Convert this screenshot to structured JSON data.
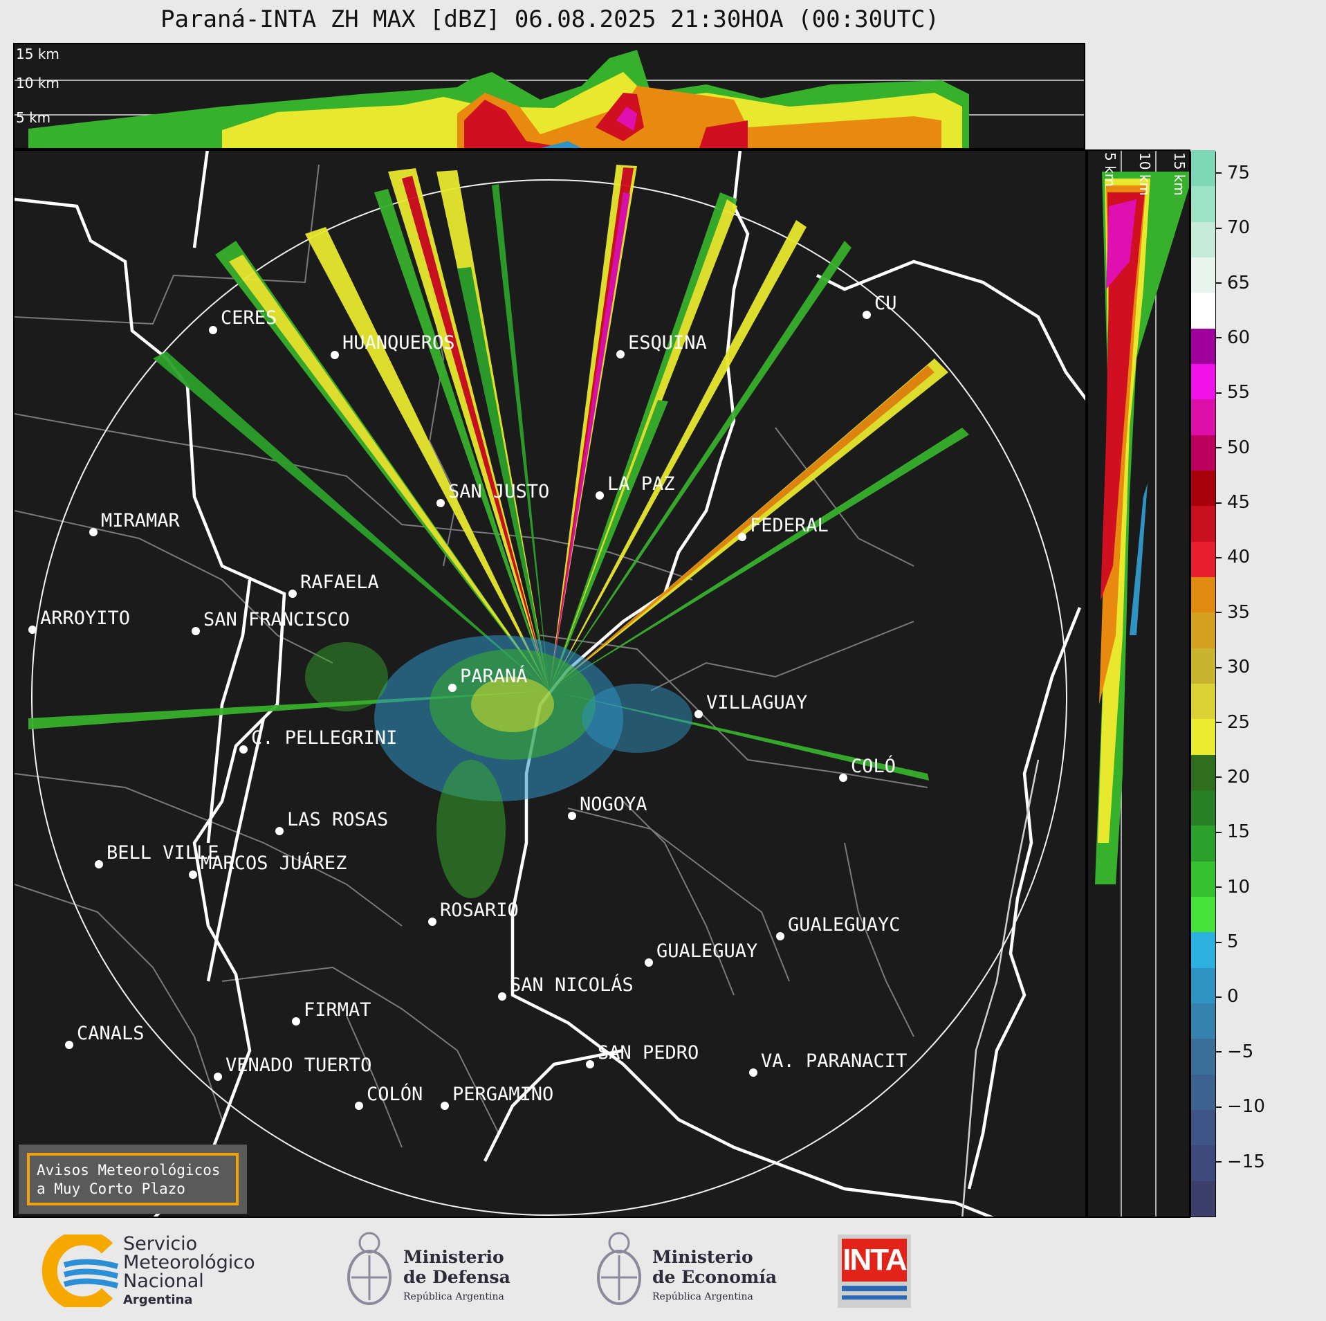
{
  "title": "Paraná-INTA ZH MAX [dBZ] 06.08.2025 21:30HOA (00:30UTC)",
  "top_panel": {
    "altitude_labels": [
      "15 km",
      "10 km",
      "5 km"
    ]
  },
  "side_panel": {
    "altitude_labels": [
      "5 km",
      "10 km",
      "15 km"
    ]
  },
  "colorbar": {
    "unit": "dBZ",
    "ticks": [
      "75",
      "70",
      "65",
      "60",
      "55",
      "50",
      "45",
      "40",
      "35",
      "30",
      "25",
      "20",
      "15",
      "10",
      "5",
      "0",
      "−5",
      "−10",
      "−15"
    ],
    "range": [
      -20,
      77
    ],
    "colors": [
      "#3d3f6b",
      "#3f4a7c",
      "#3f5587",
      "#3d6290",
      "#3a6f9a",
      "#3682ae",
      "#2f94c4",
      "#2bb0e0",
      "#46e23a",
      "#36c230",
      "#2ba02a",
      "#288024",
      "#2f6e1f",
      "#ecec2e",
      "#dcd236",
      "#c8b42e",
      "#d4a020",
      "#e08a10",
      "#e81e2e",
      "#c8101e",
      "#a8000a",
      "#bc0060",
      "#dc10a8",
      "#f010e8",
      "#a0009c",
      "#ffffff",
      "#e8f4ee",
      "#c4ecd8",
      "#9ce2c4",
      "#7ed8b8"
    ]
  },
  "cities": [
    {
      "name": "CERES"
    },
    {
      "name": "HUANQUEROS"
    },
    {
      "name": "ESQUINA"
    },
    {
      "name": "CU"
    },
    {
      "name": "SAN JUSTO"
    },
    {
      "name": "LA PAZ"
    },
    {
      "name": "MIRAMAR"
    },
    {
      "name": "FEDERAL"
    },
    {
      "name": "RAFAELA"
    },
    {
      "name": "ARROYITO"
    },
    {
      "name": "SAN FRANCISCO"
    },
    {
      "name": "PARANÁ"
    },
    {
      "name": "VILLAGUAY"
    },
    {
      "name": "C. PELLEGRINI"
    },
    {
      "name": "COLÓ"
    },
    {
      "name": "NOGOYA"
    },
    {
      "name": "LAS ROSAS"
    },
    {
      "name": "BELL VILLE"
    },
    {
      "name": "MARCOS JUÁREZ"
    },
    {
      "name": "ROSARIO"
    },
    {
      "name": "GUALEGUAYC"
    },
    {
      "name": "GUALEGUAY"
    },
    {
      "name": "SAN NICOLÁS"
    },
    {
      "name": "FIRMAT"
    },
    {
      "name": "CANALS"
    },
    {
      "name": "SAN PEDRO"
    },
    {
      "name": "VENADO TUERTO"
    },
    {
      "name": "VA. PARANACIT"
    },
    {
      "name": "COLÓN"
    },
    {
      "name": "PERGAMINO"
    }
  ],
  "notice": {
    "line1": "Avisos Meteorológicos",
    "line2": "a Muy Corto Plazo"
  },
  "logos": {
    "smn": {
      "line1": "Servicio",
      "line2": "Meteorológico",
      "line3": "Nacional",
      "line4": "Argentina"
    },
    "defensa": {
      "line1": "Ministerio",
      "line2": "de Defensa",
      "line3": "República Argentina"
    },
    "economia": {
      "line1": "Ministerio",
      "line2": "de Economía",
      "line3": "República Argentina"
    },
    "inta": {
      "text": "INTA"
    }
  }
}
